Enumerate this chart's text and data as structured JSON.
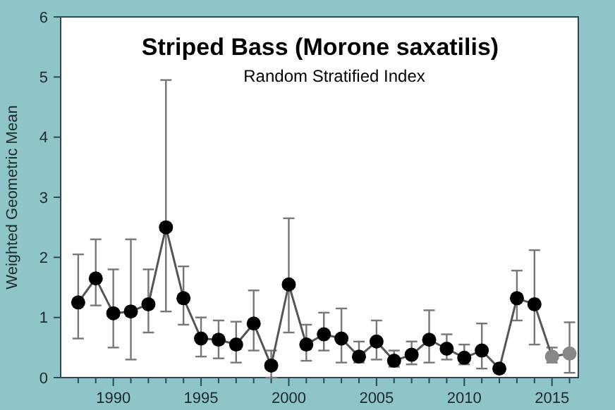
{
  "chart_data": {
    "type": "line",
    "title": "Striped Bass (Morone saxatilis)",
    "subtitle": "Random Stratified Index",
    "ylabel": "Weighted Geometric Mean",
    "x": [
      1988,
      1989,
      1990,
      1991,
      1992,
      1993,
      1994,
      1995,
      1996,
      1997,
      1998,
      1999,
      2000,
      2001,
      2002,
      2003,
      2004,
      2005,
      2006,
      2007,
      2008,
      2009,
      2010,
      2011,
      2012,
      2013,
      2014,
      2015,
      2016
    ],
    "series": [
      {
        "color": "#555555",
        "colors": [
          "#000000",
          "#000000",
          "#000000",
          "#000000",
          "#000000",
          "#000000",
          "#000000",
          "#000000",
          "#000000",
          "#000000",
          "#000000",
          "#000000",
          "#000000",
          "#000000",
          "#000000",
          "#000000",
          "#000000",
          "#000000",
          "#000000",
          "#000000",
          "#000000",
          "#000000",
          "#000000",
          "#000000",
          "#000000",
          "#000000",
          "#000000",
          "#888888",
          "#888888"
        ],
        "values": [
          1.25,
          1.65,
          1.07,
          1.1,
          1.22,
          2.5,
          1.32,
          0.65,
          0.63,
          0.55,
          0.9,
          0.2,
          1.55,
          0.55,
          0.72,
          0.65,
          0.35,
          0.6,
          0.28,
          0.38,
          0.63,
          0.48,
          0.33,
          0.45,
          0.15,
          1.32,
          1.22,
          0.35,
          0.4
        ],
        "errors": [
          [
            0.65,
            2.05
          ],
          [
            1.2,
            2.3
          ],
          [
            0.5,
            1.8
          ],
          [
            0.3,
            2.3
          ],
          [
            0.75,
            1.8
          ],
          [
            1.1,
            4.95
          ],
          [
            0.88,
            1.85
          ],
          [
            0.35,
            1.0
          ],
          [
            0.32,
            0.95
          ],
          [
            0.25,
            0.93
          ],
          [
            0.45,
            1.45
          ],
          [
            0,
            0.45
          ],
          [
            0.75,
            2.65
          ],
          [
            0.28,
            0.88
          ],
          [
            0.45,
            1.08
          ],
          [
            0.25,
            1.15
          ],
          [
            0.25,
            0.6
          ],
          [
            0.3,
            0.95
          ],
          [
            0.18,
            0.45
          ],
          [
            0.22,
            0.6
          ],
          [
            0.25,
            1.12
          ],
          [
            0.3,
            0.72
          ],
          [
            0.22,
            0.55
          ],
          [
            0.15,
            0.9
          ],
          [
            0.1,
            0.2
          ],
          [
            0.95,
            1.78
          ],
          [
            0.55,
            2.12
          ],
          [
            0.25,
            0.5
          ],
          [
            0.08,
            0.92
          ]
        ]
      }
    ],
    "xlim": [
      1987,
      2016.5
    ],
    "ylim": [
      0,
      6
    ],
    "xticks": [
      {
        "value": 1988,
        "label": null
      },
      {
        "value": 1989,
        "label": null
      },
      1990,
      {
        "value": 1991,
        "label": null
      },
      {
        "value": 1992,
        "label": null
      },
      {
        "value": 1993,
        "label": null
      },
      {
        "value": 1994,
        "label": null
      },
      1995,
      {
        "value": 1996,
        "label": null
      },
      {
        "value": 1997,
        "label": null
      },
      {
        "value": 1998,
        "label": null
      },
      {
        "value": 1999,
        "label": null
      },
      2000,
      {
        "value": 2001,
        "label": null
      },
      {
        "value": 2002,
        "label": null
      },
      {
        "value": 2003,
        "label": null
      },
      {
        "value": 2004,
        "label": null
      },
      2005,
      {
        "value": 2006,
        "label": null
      },
      {
        "value": 2007,
        "label": null
      },
      {
        "value": 2008,
        "label": null
      },
      {
        "value": 2009,
        "label": null
      },
      2010,
      {
        "value": 2011,
        "label": null
      },
      {
        "value": 2012,
        "label": null
      },
      {
        "value": 2013,
        "label": null
      },
      {
        "value": 2014,
        "label": null
      },
      2015,
      {
        "value": 2016,
        "label": null
      }
    ],
    "yticks": [
      0,
      1,
      2,
      3,
      4,
      5,
      6
    ],
    "marker": "circle",
    "line_style": "solid"
  }
}
